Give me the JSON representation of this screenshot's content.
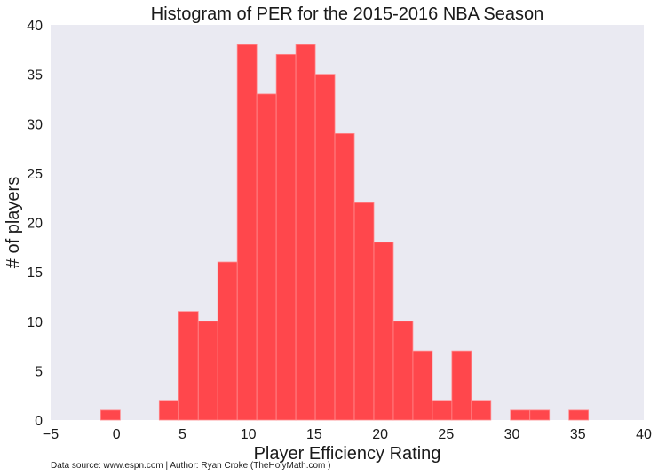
{
  "chart_data": {
    "type": "bar",
    "title": "Histogram of PER for the 2015-2016 NBA Season",
    "xlabel": "Player Efficiency Rating",
    "ylabel": "# of players",
    "xlim": [
      -5,
      40
    ],
    "ylim": [
      0,
      40
    ],
    "x_ticks": [
      -5,
      0,
      5,
      10,
      15,
      20,
      25,
      30,
      35,
      40
    ],
    "y_ticks": [
      0,
      5,
      10,
      15,
      20,
      25,
      30,
      35,
      40
    ],
    "grid": false,
    "bin_width": 1.48,
    "bins": [
      {
        "start": -1.2,
        "count": 1
      },
      {
        "start": 0.28,
        "count": 0
      },
      {
        "start": 1.76,
        "count": 0
      },
      {
        "start": 3.24,
        "count": 2
      },
      {
        "start": 4.72,
        "count": 11
      },
      {
        "start": 6.2,
        "count": 10
      },
      {
        "start": 7.68,
        "count": 16
      },
      {
        "start": 9.16,
        "count": 38
      },
      {
        "start": 10.64,
        "count": 33
      },
      {
        "start": 12.12,
        "count": 37
      },
      {
        "start": 13.6,
        "count": 38
      },
      {
        "start": 15.08,
        "count": 35
      },
      {
        "start": 16.56,
        "count": 29
      },
      {
        "start": 18.04,
        "count": 22
      },
      {
        "start": 19.52,
        "count": 18
      },
      {
        "start": 21.0,
        "count": 10
      },
      {
        "start": 22.48,
        "count": 7
      },
      {
        "start": 23.96,
        "count": 2
      },
      {
        "start": 25.44,
        "count": 7
      },
      {
        "start": 26.92,
        "count": 2
      },
      {
        "start": 28.4,
        "count": 0
      },
      {
        "start": 29.88,
        "count": 1
      },
      {
        "start": 31.36,
        "count": 1
      },
      {
        "start": 32.84,
        "count": 0
      },
      {
        "start": 34.32,
        "count": 1
      }
    ],
    "colors": {
      "bar": "#ff474c",
      "bar_edge": "#ff8c8f",
      "plot_bg": "#eaeaf2"
    },
    "source_note": "Data source: www.espn.com | Author: Ryan Croke (TheHolyMath.com )"
  }
}
